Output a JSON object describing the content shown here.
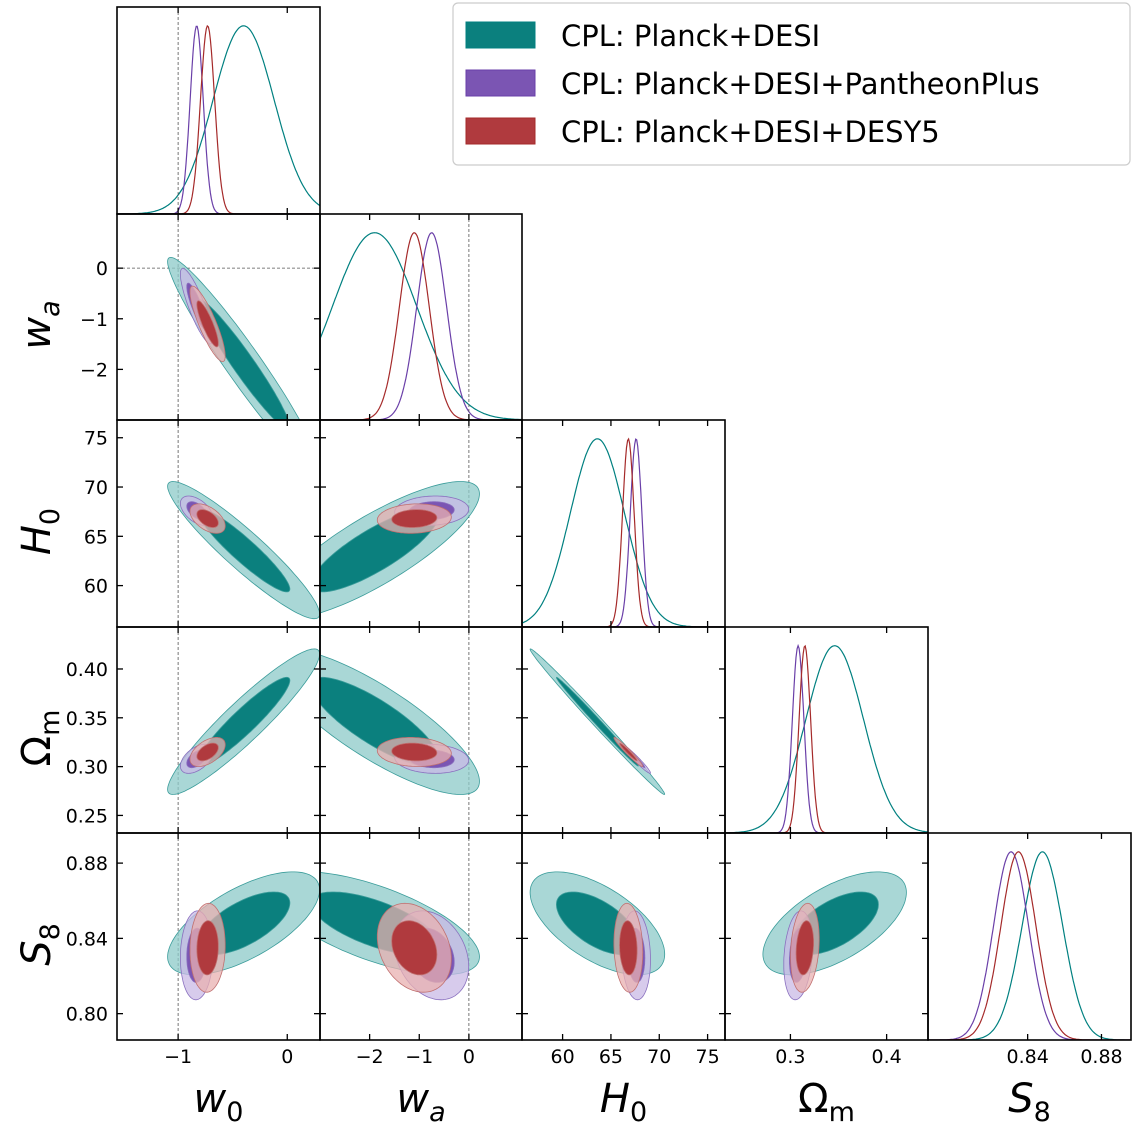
{
  "chart_data": {
    "type": "corner",
    "title": "",
    "grid": false,
    "legend_placement": "top-right",
    "parameters": [
      {
        "label": "w",
        "sub": "0",
        "sub_italic": false,
        "range": [
          -1.56,
          0.3
        ],
        "ticks": [
          -1,
          0
        ],
        "tick_labels": [
          "−1",
          "0"
        ],
        "ref": -1
      },
      {
        "label": "w",
        "sub": "a",
        "sub_italic": true,
        "range": [
          -3.0,
          1.07
        ],
        "ticks": [
          -2,
          -1,
          0
        ],
        "tick_labels": [
          "−2",
          "−1",
          "0"
        ],
        "ref": 0
      },
      {
        "label": "H",
        "sub": "0",
        "sub_italic": false,
        "range": [
          55.8,
          76.8
        ],
        "ticks": [
          60,
          65,
          70,
          75
        ],
        "tick_labels": [
          "60",
          "65",
          "70",
          "75"
        ],
        "ref": null
      },
      {
        "label": "Ω",
        "sub": "m",
        "sub_italic": false,
        "upright": true,
        "range": [
          0.232,
          0.443
        ],
        "ticks": [
          0.25,
          0.3,
          0.35,
          0.4
        ],
        "tick_labels": [
          "0.25",
          "0.30",
          "0.35",
          "0.40"
        ],
        "x_ticks": [
          0.3,
          0.4
        ],
        "x_tick_labels": [
          "0.3",
          "0.4"
        ],
        "ref": null
      },
      {
        "label": "S",
        "sub": "8",
        "sub_italic": false,
        "range": [
          0.786,
          0.896
        ],
        "ticks": [
          0.8,
          0.84,
          0.88
        ],
        "tick_labels": [
          "0.80",
          "0.84",
          "0.88"
        ],
        "x_ticks": [
          0.84,
          0.88
        ],
        "x_tick_labels": [
          "0.84",
          "0.88"
        ],
        "ref": null
      }
    ],
    "series": [
      {
        "name": "CPL: Planck+DESI",
        "color": "#008080",
        "inner": "#0b807e",
        "outer": "#8ccac8",
        "edge": "#3a9c9a",
        "mean": [
          -0.4,
          -1.9,
          63.6,
          0.346,
          0.848
        ],
        "sigma": [
          0.28,
          0.85,
          2.8,
          0.03,
          0.011
        ],
        "corr": [
          [
            1,
            -0.96,
            -0.93,
            0.93,
            0.65
          ],
          [
            -0.96,
            1,
            0.82,
            -0.82,
            -0.65
          ],
          [
            -0.93,
            0.82,
            1,
            -0.995,
            -0.6
          ],
          [
            0.93,
            -0.82,
            -0.995,
            1,
            0.6
          ],
          [
            0.65,
            -0.65,
            -0.6,
            0.6,
            1
          ]
        ]
      },
      {
        "name": "CPL: Planck+DESI+PantheonPlus",
        "color": "#6a3fa8",
        "inner": "#7b55b3",
        "outer": "#c9b9e6",
        "edge": "#8a70bf",
        "mean": [
          -0.83,
          -0.75,
          67.6,
          0.308,
          0.831
        ],
        "sigma": [
          0.06,
          0.3,
          0.6,
          0.006,
          0.0095
        ],
        "corr": [
          [
            1,
            -0.85,
            -0.5,
            0.5,
            0.05
          ],
          [
            -0.85,
            1,
            0.1,
            -0.1,
            -0.25
          ],
          [
            -0.5,
            0.1,
            1,
            -0.97,
            -0.1
          ],
          [
            0.5,
            -0.1,
            -0.97,
            1,
            0.2
          ],
          [
            0.05,
            -0.25,
            -0.1,
            0.2,
            1
          ]
        ]
      },
      {
        "name": "CPL: Planck+DESI+DESY5",
        "color": "#a52a2a",
        "inner": "#b03a3e",
        "outer": "#e8b0b0",
        "edge": "#c07070",
        "mean": [
          -0.73,
          -1.1,
          66.8,
          0.315,
          0.835
        ],
        "sigma": [
          0.065,
          0.3,
          0.6,
          0.006,
          0.0095
        ],
        "corr": [
          [
            1,
            -0.85,
            -0.5,
            0.5,
            0.05
          ],
          [
            -0.85,
            1,
            0.1,
            -0.1,
            -0.25
          ],
          [
            -0.5,
            0.1,
            1,
            -0.97,
            -0.1
          ],
          [
            0.5,
            -0.1,
            -0.97,
            1,
            0.2
          ],
          [
            0.05,
            -0.25,
            -0.1,
            0.2,
            1
          ]
        ]
      }
    ]
  }
}
